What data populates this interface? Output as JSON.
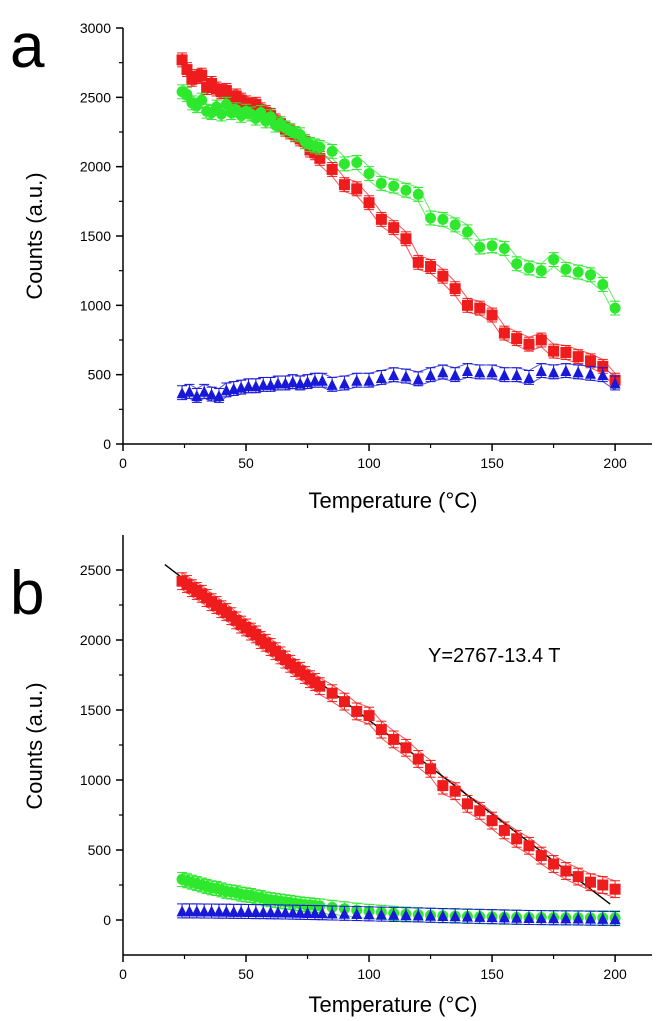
{
  "colors": {
    "red": "#ee1c1c",
    "green": "#2ee82e",
    "blue": "#1818d8",
    "axis": "#000000",
    "fit": "#000000"
  },
  "chart_data": [
    {
      "panel": "a",
      "type": "scatter",
      "xlabel": "Temperature (°C)",
      "ylabel": "Counts (a.u.)",
      "xlim": [
        0,
        215
      ],
      "ylim": [
        0,
        3000
      ],
      "xticks": [
        0,
        50,
        100,
        150,
        200
      ],
      "yticks": [
        0,
        500,
        1000,
        1500,
        2000,
        2500,
        3000
      ],
      "legend": "none",
      "series": [
        {
          "color": "red",
          "marker": "square",
          "err": 50,
          "x": [
            24,
            26,
            28,
            30,
            32,
            34,
            36,
            38,
            40,
            42,
            44,
            46,
            48,
            50,
            52,
            54,
            56,
            58,
            60,
            62,
            64,
            66,
            68,
            70,
            72,
            74,
            76,
            78,
            80,
            85,
            90,
            95,
            100,
            105,
            110,
            115,
            120,
            125,
            130,
            135,
            140,
            145,
            150,
            155,
            160,
            165,
            170,
            175,
            180,
            185,
            190,
            195,
            200
          ],
          "y": [
            2770,
            2700,
            2630,
            2650,
            2660,
            2570,
            2600,
            2560,
            2540,
            2550,
            2490,
            2510,
            2480,
            2460,
            2440,
            2450,
            2410,
            2390,
            2370,
            2330,
            2310,
            2270,
            2250,
            2230,
            2200,
            2180,
            2120,
            2100,
            2060,
            1980,
            1870,
            1840,
            1740,
            1620,
            1560,
            1480,
            1310,
            1280,
            1210,
            1120,
            1000,
            980,
            930,
            800,
            760,
            720,
            750,
            670,
            660,
            630,
            600,
            560,
            460
          ]
        },
        {
          "color": "green",
          "marker": "circle",
          "err": 50,
          "x": [
            24,
            26,
            28,
            30,
            32,
            34,
            36,
            38,
            40,
            42,
            44,
            46,
            48,
            50,
            52,
            54,
            56,
            58,
            60,
            62,
            64,
            66,
            68,
            70,
            72,
            74,
            76,
            78,
            80,
            85,
            90,
            95,
            100,
            105,
            110,
            115,
            120,
            125,
            130,
            135,
            140,
            145,
            150,
            155,
            160,
            165,
            170,
            175,
            180,
            185,
            190,
            195,
            200
          ],
          "y": [
            2540,
            2520,
            2460,
            2440,
            2480,
            2400,
            2390,
            2430,
            2380,
            2450,
            2390,
            2410,
            2370,
            2400,
            2380,
            2350,
            2390,
            2330,
            2360,
            2300,
            2310,
            2280,
            2260,
            2240,
            2230,
            2180,
            2160,
            2150,
            2140,
            2110,
            2020,
            2030,
            1950,
            1880,
            1860,
            1830,
            1800,
            1630,
            1620,
            1580,
            1530,
            1420,
            1430,
            1410,
            1300,
            1270,
            1250,
            1330,
            1260,
            1240,
            1220,
            1150,
            980
          ]
        },
        {
          "color": "blue",
          "marker": "triangle",
          "err": 50,
          "x": [
            24,
            27,
            30,
            33,
            36,
            39,
            42,
            45,
            48,
            51,
            54,
            57,
            60,
            63,
            66,
            69,
            72,
            75,
            78,
            81,
            85,
            90,
            95,
            100,
            105,
            110,
            115,
            120,
            125,
            130,
            135,
            140,
            145,
            150,
            155,
            160,
            165,
            170,
            175,
            180,
            185,
            190,
            195,
            200
          ],
          "y": [
            370,
            380,
            350,
            380,
            360,
            350,
            390,
            400,
            410,
            420,
            420,
            430,
            430,
            440,
            440,
            450,
            440,
            450,
            460,
            460,
            430,
            440,
            460,
            460,
            480,
            500,
            490,
            470,
            500,
            520,
            500,
            530,
            520,
            520,
            500,
            500,
            480,
            530,
            520,
            530,
            520,
            510,
            500,
            440
          ]
        }
      ]
    },
    {
      "panel": "b",
      "type": "scatter",
      "xlabel": "Temperature (°C)",
      "ylabel": "Counts (a.u.)",
      "xlim": [
        0,
        215
      ],
      "ylim": [
        -250,
        2750
      ],
      "xticks": [
        0,
        50,
        100,
        150,
        200
      ],
      "yticks": [
        0,
        500,
        1000,
        1500,
        2000,
        2500
      ],
      "legend": "none",
      "annotation": "Y=2767-13.4 T",
      "fit_line": {
        "x": [
          17,
          198
        ],
        "y": [
          2539,
          114
        ]
      },
      "series": [
        {
          "color": "red",
          "marker": "square",
          "err": 60,
          "x": [
            24,
            26,
            28,
            30,
            32,
            34,
            36,
            38,
            40,
            42,
            44,
            46,
            48,
            50,
            52,
            54,
            56,
            58,
            60,
            62,
            64,
            66,
            68,
            70,
            72,
            74,
            76,
            78,
            80,
            85,
            90,
            95,
            100,
            105,
            110,
            115,
            120,
            125,
            130,
            135,
            140,
            145,
            150,
            155,
            160,
            165,
            170,
            175,
            180,
            185,
            190,
            195,
            200
          ],
          "y": [
            2420,
            2400,
            2370,
            2350,
            2330,
            2300,
            2270,
            2250,
            2220,
            2200,
            2170,
            2140,
            2110,
            2090,
            2060,
            2040,
            2000,
            1980,
            1950,
            1920,
            1890,
            1860,
            1830,
            1800,
            1780,
            1750,
            1720,
            1700,
            1670,
            1620,
            1560,
            1490,
            1460,
            1360,
            1290,
            1230,
            1150,
            1080,
            960,
            920,
            830,
            780,
            710,
            640,
            580,
            530,
            460,
            400,
            350,
            310,
            270,
            250,
            220
          ]
        },
        {
          "color": "green",
          "marker": "circle",
          "err": 50,
          "x": [
            24,
            26,
            28,
            30,
            32,
            34,
            36,
            38,
            40,
            42,
            44,
            46,
            48,
            50,
            52,
            54,
            56,
            58,
            60,
            62,
            64,
            66,
            68,
            70,
            72,
            74,
            76,
            78,
            80,
            85,
            90,
            95,
            100,
            105,
            110,
            115,
            120,
            125,
            130,
            135,
            140,
            145,
            150,
            155,
            160,
            165,
            170,
            175,
            180,
            185,
            190,
            195,
            200
          ],
          "y": [
            290,
            280,
            270,
            260,
            250,
            240,
            230,
            225,
            215,
            205,
            200,
            195,
            185,
            180,
            175,
            165,
            160,
            150,
            145,
            140,
            135,
            130,
            125,
            120,
            115,
            110,
            108,
            104,
            100,
            90,
            80,
            70,
            62,
            55,
            48,
            42,
            38,
            34,
            30,
            28,
            26,
            24,
            22,
            20,
            19,
            18,
            18,
            17,
            16,
            16,
            15,
            15,
            15
          ]
        },
        {
          "color": "blue",
          "marker": "triangle",
          "err": 50,
          "x": [
            24,
            27,
            30,
            33,
            36,
            39,
            42,
            45,
            48,
            51,
            54,
            57,
            60,
            63,
            66,
            69,
            72,
            75,
            78,
            81,
            85,
            90,
            95,
            100,
            105,
            110,
            115,
            120,
            125,
            130,
            135,
            140,
            145,
            150,
            155,
            160,
            165,
            170,
            175,
            180,
            185,
            190,
            195,
            200
          ],
          "y": [
            65,
            65,
            65,
            64,
            64,
            63,
            63,
            62,
            62,
            61,
            60,
            60,
            59,
            58,
            57,
            56,
            55,
            54,
            53,
            52,
            50,
            48,
            46,
            44,
            42,
            40,
            38,
            36,
            34,
            32,
            30,
            28,
            26,
            24,
            22,
            20,
            18,
            17,
            16,
            15,
            14,
            13,
            12,
            10
          ]
        }
      ]
    }
  ]
}
